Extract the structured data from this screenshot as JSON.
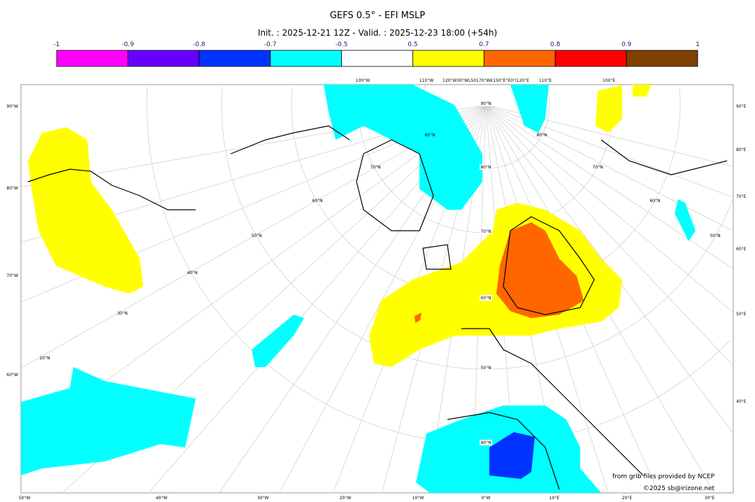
{
  "title": "GEFS 0.5° - EFI MSLP",
  "subtitle": "Init. : 2025-12-21 12Z - Valid. : 2025-12-23 18:00 (+54h)",
  "colorbar": {
    "ticks": [
      "-1",
      "-0.9",
      "-0.8",
      "-0.7",
      "-0.5",
      "0.5",
      "0.7",
      "0.8",
      "0.9",
      "1"
    ],
    "colors": [
      "#ff00ff",
      "#6600ff",
      "#0033ff",
      "#00ffff",
      "#ffffff",
      "#ffff00",
      "#ff6600",
      "#ff0000",
      "#804000"
    ]
  },
  "map": {
    "bottom_labels": [
      "50°W",
      "40°W",
      "30°W",
      "20°W",
      "10°W",
      "0°W",
      "10°E",
      "20°E",
      "30°E"
    ],
    "left_labels": [
      "90°W",
      "80°W",
      "70°W",
      "60°W"
    ],
    "right_labels": [
      "90°E",
      "80°E",
      "70°E",
      "60°E",
      "50°E",
      "40°E"
    ],
    "top_labels": [
      "100°W",
      "110°W",
      "120°W30°WL50170°W€150°E°E0°I120°E",
      "110°E",
      "100°E"
    ],
    "lat_labels": [
      "90°N",
      "80°N",
      "70°N",
      "60°N",
      "50°N",
      "40°N",
      "80°N",
      "70°N",
      "60°N",
      "50°N",
      "40°N",
      "30°N",
      "20°N",
      "80°N",
      "70°N",
      "60°N",
      "50°N"
    ],
    "credit1": "from grib files provided by NCEP",
    "credit2": "©2025 sb@irizone.net"
  }
}
